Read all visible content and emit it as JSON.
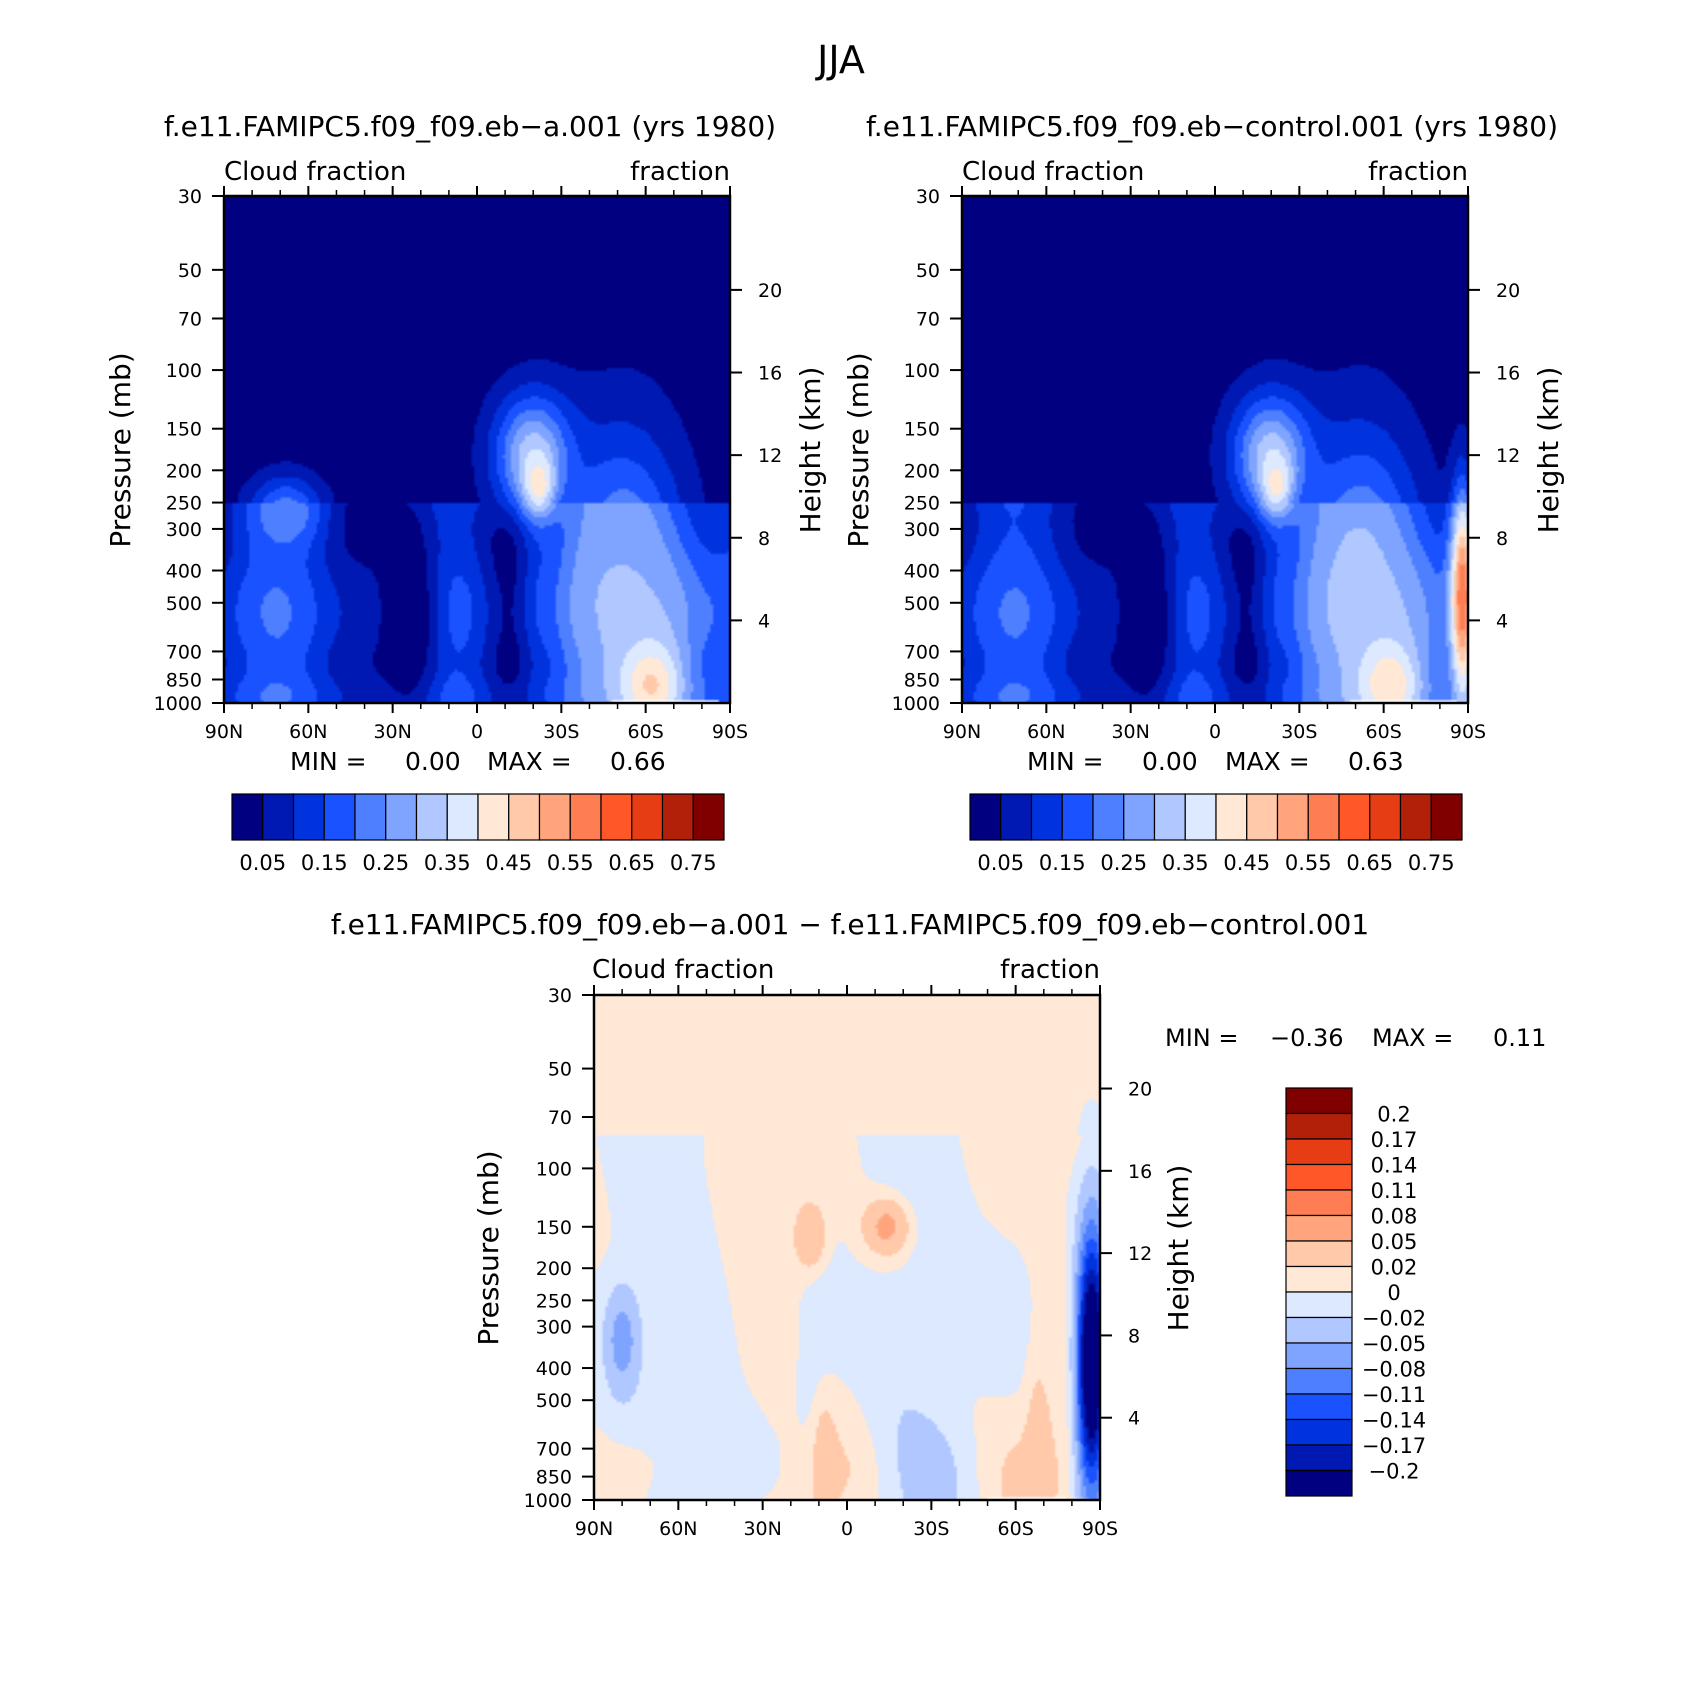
{
  "chart_data": {
    "type": "heatmap",
    "title": "JJA",
    "panels": [
      {
        "id": "panel-a",
        "kind": "absolute",
        "title": "f.e11.FAMIPC5.f09_f09.eb−a.001 (yrs 1980)",
        "left_label": "Cloud fraction",
        "right_label": "fraction",
        "ylabel": "Pressure (mb)",
        "y2label": "Height (km)",
        "x_ticks": [
          "90N",
          "60N",
          "30N",
          "0",
          "30S",
          "60S",
          "90S"
        ],
        "y_ticks": [
          "30",
          "50",
          "70",
          "100",
          "150",
          "200",
          "250",
          "300",
          "400",
          "500",
          "700",
          "850",
          "1000"
        ],
        "y_tick_values": [
          30,
          50,
          70,
          100,
          150,
          200,
          250,
          300,
          400,
          500,
          700,
          850,
          1000
        ],
        "y2_ticks": [
          "20",
          "16",
          "12",
          "8",
          "4"
        ],
        "y2_tick_values": [
          20,
          16,
          12,
          8,
          4
        ],
        "ylim": [
          30,
          1000
        ],
        "xlim": [
          90,
          -90
        ],
        "stats": {
          "min_label": "MIN =",
          "min_value": "0.00",
          "max_label": "MAX =",
          "max_value": "0.66"
        },
        "colorbar_labels": [
          "0.05",
          "0.15",
          "0.25",
          "0.35",
          "0.45",
          "0.55",
          "0.65",
          "0.75"
        ],
        "features": [
          {
            "type": "lobe",
            "lat": -20,
            "p": 180,
            "value": 0.33,
            "rx": 10,
            "ry": 2.5
          },
          {
            "type": "lobe",
            "lat": -22,
            "p": 220,
            "value": 0.45,
            "rx": 4,
            "ry": 1.2
          },
          {
            "type": "lobe",
            "lat": 24,
            "p": 550,
            "value": 0.01,
            "rx": 8,
            "ry": 4.5
          },
          {
            "type": "lobe",
            "lat": -52,
            "p": 450,
            "value": 0.3,
            "rx": 15,
            "ry": 6
          },
          {
            "type": "lobe",
            "lat": -62,
            "p": 880,
            "value": 0.46,
            "rx": 8,
            "ry": 1.8
          },
          {
            "type": "lobe",
            "lat": 68,
            "p": 270,
            "value": 0.24,
            "rx": 9,
            "ry": 1.5
          }
        ]
      },
      {
        "id": "panel-b",
        "kind": "absolute",
        "title": "f.e11.FAMIPC5.f09_f09.eb−control.001 (yrs 1980)",
        "left_label": "Cloud fraction",
        "right_label": "fraction",
        "ylabel": "Pressure (mb)",
        "y2label": "Height (km)",
        "x_ticks": [
          "90N",
          "60N",
          "30N",
          "0",
          "30S",
          "60S",
          "90S"
        ],
        "y_ticks": [
          "30",
          "50",
          "70",
          "100",
          "150",
          "200",
          "250",
          "300",
          "400",
          "500",
          "700",
          "850",
          "1000"
        ],
        "y_tick_values": [
          30,
          50,
          70,
          100,
          150,
          200,
          250,
          300,
          400,
          500,
          700,
          850,
          1000
        ],
        "y2_ticks": [
          "20",
          "16",
          "12",
          "8",
          "4"
        ],
        "y2_tick_values": [
          20,
          16,
          12,
          8,
          4
        ],
        "ylim": [
          30,
          1000
        ],
        "xlim": [
          90,
          -90
        ],
        "stats": {
          "min_label": "MIN =",
          "min_value": "0.00",
          "max_label": "MAX =",
          "max_value": "0.63"
        },
        "colorbar_labels": [
          "0.05",
          "0.15",
          "0.25",
          "0.35",
          "0.45",
          "0.55",
          "0.65",
          "0.75"
        ],
        "features": [
          {
            "type": "lobe",
            "lat": -20,
            "p": 180,
            "value": 0.33,
            "rx": 10,
            "ry": 2.5
          },
          {
            "type": "lobe",
            "lat": -22,
            "p": 220,
            "value": 0.44,
            "rx": 4,
            "ry": 1.2
          },
          {
            "type": "lobe",
            "lat": 24,
            "p": 550,
            "value": 0.01,
            "rx": 8,
            "ry": 4.5
          },
          {
            "type": "lobe",
            "lat": -52,
            "p": 450,
            "value": 0.31,
            "rx": 15,
            "ry": 6
          },
          {
            "type": "lobe",
            "lat": -62,
            "p": 880,
            "value": 0.45,
            "rx": 8,
            "ry": 1.8
          },
          {
            "type": "lobe",
            "lat": -88,
            "p": 480,
            "value": 0.6,
            "rx": 3,
            "ry": 4
          }
        ]
      },
      {
        "id": "panel-diff",
        "kind": "difference",
        "title": "f.e11.FAMIPC5.f09_f09.eb−a.001 − f.e11.FAMIPC5.f09_f09.eb−control.001",
        "left_label": "Cloud fraction",
        "right_label": "fraction",
        "ylabel": "Pressure (mb)",
        "y2label": "Height (km)",
        "x_ticks": [
          "90N",
          "60N",
          "30N",
          "0",
          "30S",
          "60S",
          "90S"
        ],
        "y_ticks": [
          "30",
          "50",
          "70",
          "100",
          "150",
          "200",
          "250",
          "300",
          "400",
          "500",
          "700",
          "850",
          "1000"
        ],
        "y_tick_values": [
          30,
          50,
          70,
          100,
          150,
          200,
          250,
          300,
          400,
          500,
          700,
          850,
          1000
        ],
        "y2_ticks": [
          "20",
          "16",
          "12",
          "8",
          "4"
        ],
        "y2_tick_values": [
          20,
          16,
          12,
          8,
          4
        ],
        "ylim": [
          30,
          1000
        ],
        "xlim": [
          90,
          -90
        ],
        "stats": {
          "min_label": "MIN =",
          "min_value": "−0.36",
          "max_label": "MAX =",
          "max_value": "0.11"
        },
        "colorbar_labels": [
          "0.2",
          "0.17",
          "0.14",
          "0.11",
          "0.08",
          "0.05",
          "0.02",
          "0",
          "−0.02",
          "−0.05",
          "−0.08",
          "−0.11",
          "−0.14",
          "−0.17",
          "−0.2"
        ],
        "features": [
          {
            "type": "lobe",
            "lat": -14,
            "p": 150,
            "value": 0.06,
            "rx": 6,
            "ry": 1.2
          },
          {
            "type": "lobe",
            "lat": 13,
            "p": 160,
            "value": 0.05,
            "rx": 4,
            "ry": 1.4
          },
          {
            "type": "lobe",
            "lat": -87,
            "p": 380,
            "value": -0.3,
            "rx": 3.5,
            "ry": 5
          },
          {
            "type": "lobe",
            "lat": 8,
            "p": 820,
            "value": 0.04,
            "rx": 3,
            "ry": 3
          },
          {
            "type": "lobe",
            "lat": -68,
            "p": 800,
            "value": 0.04,
            "rx": 3,
            "ry": 4
          },
          {
            "type": "lobe",
            "lat": 80,
            "p": 330,
            "value": -0.07,
            "rx": 4,
            "ry": 2
          }
        ]
      }
    ],
    "palettes": {
      "absolute": [
        "#000080",
        "#0019b3",
        "#0033dd",
        "#1a52ff",
        "#4d7fff",
        "#7fa4ff",
        "#b0c8ff",
        "#dce9ff",
        "#ffe8d6",
        "#ffc9aa",
        "#ffa47d",
        "#ff7d52",
        "#ff5728",
        "#e63d14",
        "#b3200a",
        "#800000"
      ],
      "difference": [
        "#000080",
        "#0019b3",
        "#0033dd",
        "#1a52ff",
        "#4d7fff",
        "#7fa4ff",
        "#b0c8ff",
        "#dce9ff",
        "#ffe8d6",
        "#ffc9aa",
        "#ffa47d",
        "#ff7d52",
        "#ff5728",
        "#e63d14",
        "#b3200a",
        "#800000"
      ],
      "blank": "#ffffff",
      "axis": "#000000"
    }
  }
}
